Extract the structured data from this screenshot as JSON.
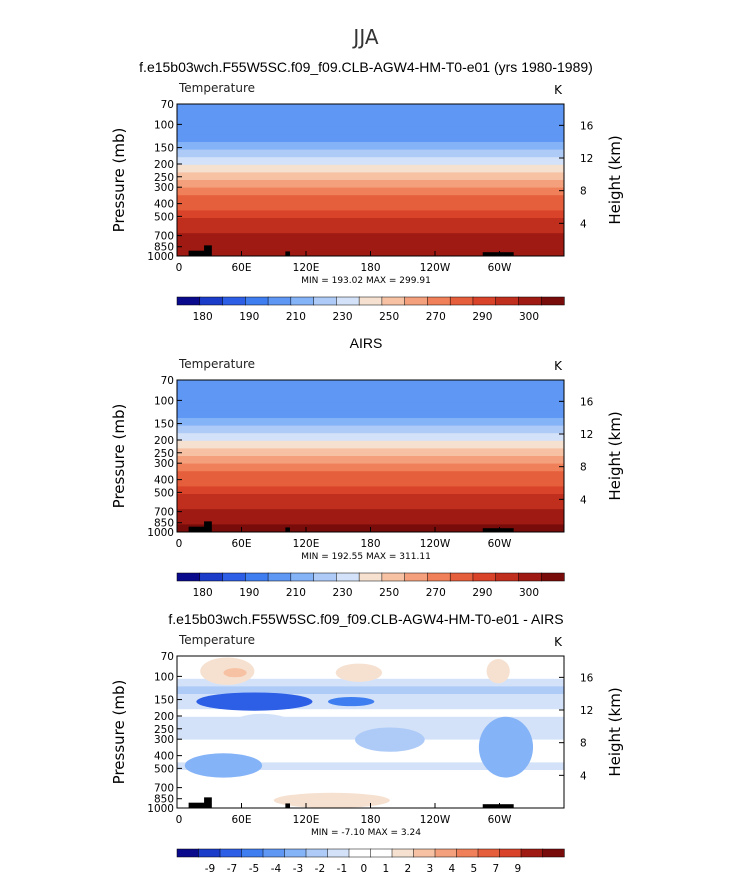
{
  "figure": {
    "title": "JJA"
  },
  "palettes": {
    "abs": [
      "#0a0a8c",
      "#1a3cc8",
      "#2d5ee6",
      "#3f7ef0",
      "#5f97f4",
      "#85b3f7",
      "#aecbf7",
      "#d3e2f8",
      "#f6e1d1",
      "#f7c2a4",
      "#f5a07c",
      "#f08059",
      "#e65f3d",
      "#d8432a",
      "#c02e1d",
      "#9e1a12",
      "#780c0a"
    ],
    "diff": [
      "#0a0a8c",
      "#1a3cc8",
      "#2d5ee6",
      "#3f7ef0",
      "#5f97f4",
      "#85b3f7",
      "#aecbf7",
      "#d3e2f8",
      "#ffffff",
      "#ffffff",
      "#f6e1d1",
      "#f7c2a4",
      "#f5a07c",
      "#f08059",
      "#e65f3d",
      "#d8432a",
      "#9e1a12",
      "#780c0a"
    ]
  },
  "chart_data": [
    {
      "type": "heatmap",
      "title": "f.e15b03wch.F55W5SC.f09_f09.CLB-AGW4-HM-T0-e01 (yrs 1980-1989)",
      "field_label": "Temperature",
      "units": "K",
      "ylabel": "Pressure  (mb)",
      "ylabel_right": "Height  (km)",
      "x": [
        "0",
        "60E",
        "120E",
        "180",
        "120W",
        "60W"
      ],
      "y": [
        "70",
        "100",
        "150",
        "200",
        "250",
        "300",
        "400",
        "500",
        "700",
        "850",
        "1000"
      ],
      "y_right": [
        "16",
        "12",
        "8",
        "4"
      ],
      "ylim": [
        1000,
        70
      ],
      "stats": "MIN = 193.02   MAX = 299.91",
      "colorbar": [
        "180",
        "190",
        "210",
        "230",
        "250",
        "270",
        "290",
        "300"
      ],
      "levels": [
        209,
        208,
        207,
        208,
        212,
        218,
        225,
        232,
        240,
        248,
        256,
        263,
        268,
        273,
        278,
        283,
        287,
        291,
        294,
        297
      ],
      "vmin": 175,
      "vmax": 305
    },
    {
      "type": "heatmap",
      "title": "AIRS",
      "field_label": "Temperature",
      "units": "K",
      "ylabel": "Pressure  (mb)",
      "ylabel_right": "Height  (km)",
      "x": [
        "0",
        "60E",
        "120E",
        "180",
        "120W",
        "60W"
      ],
      "y": [
        "70",
        "100",
        "150",
        "200",
        "250",
        "300",
        "400",
        "500",
        "700",
        "850",
        "1000"
      ],
      "y_right": [
        "16",
        "12",
        "8",
        "4"
      ],
      "ylim": [
        1000,
        70
      ],
      "stats": "MIN = 192.55   MAX = 311.11",
      "colorbar": [
        "180",
        "190",
        "210",
        "230",
        "250",
        "270",
        "290",
        "300"
      ],
      "levels": [
        210,
        209,
        208,
        209,
        213,
        219,
        226,
        233,
        241,
        249,
        257,
        264,
        269,
        274,
        279,
        284,
        288,
        292,
        295,
        299
      ],
      "vmin": 175,
      "vmax": 305
    },
    {
      "type": "heatmap",
      "title": "f.e15b03wch.F55W5SC.f09_f09.CLB-AGW4-HM-T0-e01 - AIRS",
      "field_label": "Temperature",
      "units": "K",
      "ylabel": "Pressure  (mb)",
      "ylabel_right": "Height  (km)",
      "x": [
        "0",
        "60E",
        "120E",
        "180",
        "120W",
        "60W"
      ],
      "y": [
        "70",
        "100",
        "150",
        "200",
        "250",
        "300",
        "400",
        "500",
        "700",
        "850",
        "1000"
      ],
      "y_right": [
        "16",
        "12",
        "8",
        "4"
      ],
      "ylim": [
        1000,
        70
      ],
      "stats": "MIN =   -7.10   MAX =     3.24",
      "colorbar": [
        "-9",
        "-7",
        "-5",
        "-4",
        "-3",
        "-2",
        "-1",
        "0",
        "1",
        "2",
        "3",
        "4",
        "5",
        "7",
        "9"
      ],
      "levels": [
        -1,
        -0.5,
        -1,
        -2,
        -3,
        -2,
        -1.5,
        -1,
        -1.5,
        -2,
        -1.5,
        -1,
        -0.5,
        -1,
        -1.5,
        -1,
        -0.5,
        -1,
        -1,
        -0.5
      ],
      "vmin": -10,
      "vmax": 10
    }
  ]
}
